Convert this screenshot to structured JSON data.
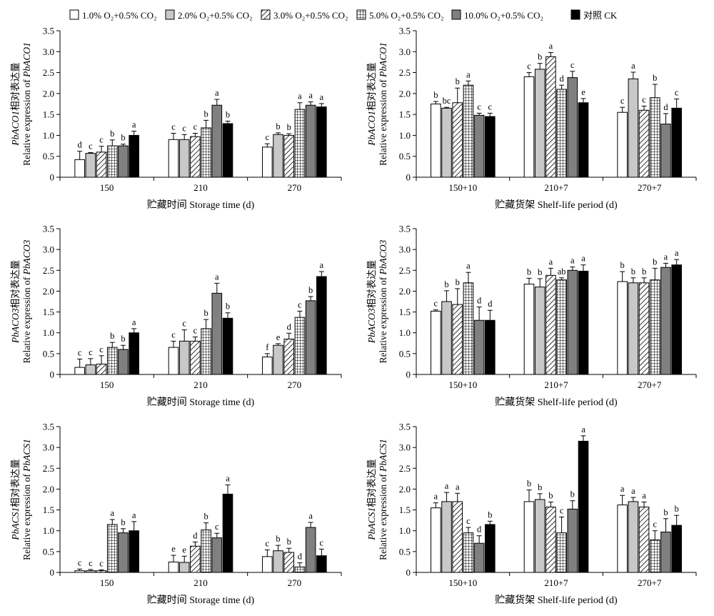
{
  "legend": {
    "items": [
      {
        "label": "1.0% O₂+0.5% CO₂",
        "pattern": "white"
      },
      {
        "label": "2.0% O₂+0.5% CO₂",
        "pattern": "lightgray"
      },
      {
        "label": "3.0% O₂+0.5% CO₂",
        "pattern": "diagonal"
      },
      {
        "label": "5.0% O₂+0.5% CO₂",
        "pattern": "grid"
      },
      {
        "label": "10.0% O₂+0.5% CO₂",
        "pattern": "darkgray"
      },
      {
        "label": "对照 CK",
        "pattern": "black"
      }
    ]
  },
  "colors": {
    "white": "#ffffff",
    "lightgray": "#c8c8c8",
    "darkgray": "#808080",
    "black": "#000000"
  },
  "chart_data": [
    {
      "type": "bar",
      "ylabel_cn_gene": "PbACO1",
      "ylabel_cn": "相对表达量",
      "ylabel_en": "Relative expression of ",
      "ylabel_gene": "PbACO1",
      "xlabel": "贮藏时间 Storage time (d)",
      "ylim": [
        0,
        3.5
      ],
      "yticks": [
        "0",
        "0.5",
        "1.0",
        "1.5",
        "2.0",
        "2.5",
        "3.0",
        "3.5"
      ],
      "categories": [
        "150",
        "210",
        "270"
      ],
      "series": [
        {
          "name": "1.0% O₂+0.5% CO₂",
          "values": [
            0.42,
            0.9,
            0.72
          ],
          "errors": [
            0.2,
            0.15,
            0.08
          ],
          "letters": [
            "d",
            "c",
            "c"
          ]
        },
        {
          "name": "2.0% O₂+0.5% CO₂",
          "values": [
            0.57,
            0.9,
            1.02
          ],
          "errors": [
            0.02,
            0.12,
            0.04
          ],
          "letters": [
            "c",
            "c",
            "b"
          ]
        },
        {
          "name": "3.0% O₂+0.5% CO₂",
          "values": [
            0.6,
            0.97,
            1.0
          ],
          "errors": [
            0.14,
            0.08,
            0.04
          ],
          "letters": [
            "c",
            "c",
            "b"
          ]
        },
        {
          "name": "5.0% O₂+0.5% CO₂",
          "values": [
            0.75,
            1.18,
            1.62
          ],
          "errors": [
            0.14,
            0.18,
            0.16
          ],
          "letters": [
            "b",
            "b",
            "a"
          ]
        },
        {
          "name": "10.0% O₂+0.5% CO₂",
          "values": [
            0.75,
            1.72,
            1.72
          ],
          "errors": [
            0.04,
            0.14,
            0.08
          ],
          "letters": [
            "b",
            "a",
            "a"
          ]
        },
        {
          "name": "对照 CK",
          "values": [
            1.0,
            1.28,
            1.68
          ],
          "errors": [
            0.1,
            0.06,
            0.08
          ],
          "letters": [
            "a",
            "b",
            "a"
          ]
        }
      ]
    },
    {
      "type": "bar",
      "ylabel_cn_gene": "PbACO1",
      "ylabel_cn": "相对表达量",
      "ylabel_en": "Relative expression of ",
      "ylabel_gene": "PbACO1",
      "xlabel": "贮藏货架 Shelf-life period (d)",
      "ylim": [
        0,
        3.5
      ],
      "yticks": [
        "0",
        "0.5",
        "1.0",
        "1.5",
        "2.0",
        "2.5",
        "3.0",
        "3.5"
      ],
      "categories": [
        "150+10",
        "210+7",
        "270+7"
      ],
      "series": [
        {
          "name": "1.0% O₂+0.5% CO₂",
          "values": [
            1.75,
            2.4,
            1.55
          ],
          "errors": [
            0.06,
            0.1,
            0.12
          ],
          "letters": [
            "b",
            "c",
            "c"
          ]
        },
        {
          "name": "2.0% O₂+0.5% CO₂",
          "values": [
            1.65,
            2.58,
            2.35
          ],
          "errors": [
            0.02,
            0.14,
            0.16
          ],
          "letters": [
            "bc",
            "b",
            "a"
          ]
        },
        {
          "name": "3.0% O₂+0.5% CO₂",
          "values": [
            1.78,
            2.88,
            1.6
          ],
          "errors": [
            0.35,
            0.1,
            0.1
          ],
          "letters": [
            "b",
            "a",
            "c"
          ]
        },
        {
          "name": "5.0% O₂+0.5% CO₂",
          "values": [
            2.2,
            2.1,
            1.9
          ],
          "errors": [
            0.1,
            0.1,
            0.32
          ],
          "letters": [
            "a",
            "d",
            "b"
          ]
        },
        {
          "name": "10.0% O₂+0.5% CO₂",
          "values": [
            1.48,
            2.38,
            1.27
          ],
          "errors": [
            0.05,
            0.15,
            0.25
          ],
          "letters": [
            "c",
            "c",
            "d"
          ]
        },
        {
          "name": "对照 CK",
          "values": [
            1.45,
            1.78,
            1.65
          ],
          "errors": [
            0.08,
            0.1,
            0.22
          ],
          "letters": [
            "c",
            "e",
            "c"
          ]
        }
      ]
    },
    {
      "type": "bar",
      "ylabel_cn_gene": "PbACO3",
      "ylabel_cn": "相对表达量",
      "ylabel_en": "Relative expression of ",
      "ylabel_gene": "PbACO3",
      "xlabel": "贮藏时间 Storage time (d)",
      "ylim": [
        0,
        3.5
      ],
      "yticks": [
        "0",
        "0.5",
        "1.0",
        "1.5",
        "2.0",
        "2.5",
        "3.0",
        "3.5"
      ],
      "categories": [
        "150",
        "210",
        "270"
      ],
      "series": [
        {
          "name": "1.0% O₂+0.5% CO₂",
          "values": [
            0.17,
            0.65,
            0.42
          ],
          "errors": [
            0.2,
            0.15,
            0.08
          ],
          "letters": [
            "c",
            "c",
            "f"
          ]
        },
        {
          "name": "2.0% O₂+0.5% CO₂",
          "values": [
            0.23,
            0.8,
            0.7
          ],
          "errors": [
            0.15,
            0.27,
            0.04
          ],
          "letters": [
            "c",
            "c",
            "e"
          ]
        },
        {
          "name": "3.0% O₂+0.5% CO₂",
          "values": [
            0.25,
            0.8,
            0.85
          ],
          "errors": [
            0.2,
            0.1,
            0.14
          ],
          "letters": [
            "c",
            "c",
            "d"
          ]
        },
        {
          "name": "5.0% O₂+0.5% CO₂",
          "values": [
            0.65,
            1.1,
            1.37
          ],
          "errors": [
            0.12,
            0.22,
            0.15
          ],
          "letters": [
            "b",
            "b",
            "c"
          ]
        },
        {
          "name": "10.0% O₂+0.5% CO₂",
          "values": [
            0.6,
            1.95,
            1.77
          ],
          "errors": [
            0.1,
            0.24,
            0.1
          ],
          "letters": [
            "b",
            "a",
            "b"
          ]
        },
        {
          "name": "对照 CK",
          "values": [
            1.0,
            1.35,
            2.35
          ],
          "errors": [
            0.1,
            0.13,
            0.12
          ],
          "letters": [
            "a",
            "b",
            "a"
          ]
        }
      ]
    },
    {
      "type": "bar",
      "ylabel_cn_gene": "PbACO3",
      "ylabel_cn": "相对表达量",
      "ylabel_en": "Relative expression of ",
      "ylabel_gene": "PbACO3",
      "xlabel": "贮藏货架 Shelf-life period (d)",
      "ylim": [
        0,
        3.5
      ],
      "yticks": [
        "0",
        "0.5",
        "1.0",
        "1.5",
        "2.0",
        "2.5",
        "3.0",
        "3.5"
      ],
      "categories": [
        "150+10",
        "210+7",
        "270+7"
      ],
      "series": [
        {
          "name": "1.0% O₂+0.5% CO₂",
          "values": [
            1.52,
            2.17,
            2.23
          ],
          "errors": [
            0.03,
            0.14,
            0.24
          ],
          "letters": [
            "c",
            "b",
            "b"
          ]
        },
        {
          "name": "2.0% O₂+0.5% CO₂",
          "values": [
            1.75,
            2.1,
            2.2
          ],
          "errors": [
            0.26,
            0.2,
            0.12
          ],
          "letters": [
            "b",
            "b",
            "b"
          ]
        },
        {
          "name": "3.0% O₂+0.5% CO₂",
          "values": [
            1.68,
            2.38,
            2.2
          ],
          "errors": [
            0.38,
            0.17,
            0.12
          ],
          "letters": [
            "b",
            "a",
            "b"
          ]
        },
        {
          "name": "5.0% O₂+0.5% CO₂",
          "values": [
            2.2,
            2.27,
            2.27
          ],
          "errors": [
            0.25,
            0.05,
            0.28
          ],
          "letters": [
            "a",
            "ab",
            "b"
          ]
        },
        {
          "name": "10.0% O₂+0.5% CO₂",
          "values": [
            1.3,
            2.5,
            2.57
          ],
          "errors": [
            0.32,
            0.08,
            0.1
          ],
          "letters": [
            "d",
            "a",
            "a"
          ]
        },
        {
          "name": "对照 CK",
          "values": [
            1.3,
            2.48,
            2.63
          ],
          "errors": [
            0.24,
            0.15,
            0.13
          ],
          "letters": [
            "d",
            "a",
            "a"
          ]
        }
      ]
    },
    {
      "type": "bar",
      "ylabel_cn_gene": "PbACS1",
      "ylabel_cn": "相对表达量",
      "ylabel_en": "Relative expression of ",
      "ylabel_gene": "PbACS1",
      "xlabel": "贮藏时间 Storage time (d)",
      "ylim": [
        0,
        3.5
      ],
      "yticks": [
        "0",
        "0.5",
        "1.0",
        "1.5",
        "2.0",
        "2.5",
        "3.0",
        "3.5"
      ],
      "categories": [
        "150",
        "210",
        "270"
      ],
      "series": [
        {
          "name": "1.0% O₂+0.5% CO₂",
          "values": [
            0.04,
            0.25,
            0.38
          ],
          "errors": [
            0.04,
            0.16,
            0.16
          ],
          "letters": [
            "c",
            "e",
            "c"
          ]
        },
        {
          "name": "2.0% O₂+0.5% CO₂",
          "values": [
            0.04,
            0.24,
            0.52
          ],
          "errors": [
            0.03,
            0.15,
            0.13
          ],
          "letters": [
            "c",
            "e",
            "b"
          ]
        },
        {
          "name": "3.0% O₂+0.5% CO₂",
          "values": [
            0.04,
            0.63,
            0.48
          ],
          "errors": [
            0.02,
            0.1,
            0.1
          ],
          "letters": [
            "c",
            "d",
            "b"
          ]
        },
        {
          "name": "5.0% O₂+0.5% CO₂",
          "values": [
            1.15,
            1.02,
            0.13
          ],
          "errors": [
            0.12,
            0.17,
            0.1
          ],
          "letters": [
            "a",
            "b",
            "d"
          ]
        },
        {
          "name": "10.0% O₂+0.5% CO₂",
          "values": [
            0.95,
            0.83,
            1.08
          ],
          "errors": [
            0.1,
            0.11,
            0.12
          ],
          "letters": [
            "b",
            "c",
            "a"
          ]
        },
        {
          "name": "对照 CK",
          "values": [
            1.0,
            1.88,
            0.4
          ],
          "errors": [
            0.22,
            0.22,
            0.16
          ],
          "letters": [
            "a",
            "a",
            "c"
          ]
        }
      ]
    },
    {
      "type": "bar",
      "ylabel_cn_gene": "PbACS1",
      "ylabel_cn": "相对表达量",
      "ylabel_en": "Relative expression of ",
      "ylabel_gene": "PbACS1",
      "xlabel": "贮藏货架 Shelf-life period (d)",
      "ylim": [
        0,
        3.5
      ],
      "yticks": [
        "0",
        "0.5",
        "1.0",
        "1.5",
        "2.0",
        "2.5",
        "3.0",
        "3.5"
      ],
      "categories": [
        "150+10",
        "210+7",
        "270+7"
      ],
      "series": [
        {
          "name": "1.0% O₂+0.5% CO₂",
          "values": [
            1.55,
            1.7,
            1.62
          ],
          "errors": [
            0.12,
            0.28,
            0.23
          ],
          "letters": [
            "a",
            "b",
            "a"
          ]
        },
        {
          "name": "2.0% O₂+0.5% CO₂",
          "values": [
            1.7,
            1.75,
            1.7
          ],
          "errors": [
            0.22,
            0.14,
            0.1
          ],
          "letters": [
            "a",
            "b",
            "a"
          ]
        },
        {
          "name": "3.0% O₂+0.5% CO₂",
          "values": [
            1.7,
            1.57,
            1.57
          ],
          "errors": [
            0.2,
            0.12,
            0.12
          ],
          "letters": [
            "a",
            "b",
            "a"
          ]
        },
        {
          "name": "5.0% O₂+0.5% CO₂",
          "values": [
            0.95,
            0.95,
            0.78
          ],
          "errors": [
            0.13,
            0.38,
            0.22
          ],
          "letters": [
            "c",
            "c",
            "c"
          ]
        },
        {
          "name": "10.0% O₂+0.5% CO₂",
          "values": [
            0.7,
            1.52,
            0.97
          ],
          "errors": [
            0.18,
            0.2,
            0.32
          ],
          "letters": [
            "d",
            "b",
            "b"
          ]
        },
        {
          "name": "对照 CK",
          "values": [
            1.15,
            3.15,
            1.13
          ],
          "errors": [
            0.08,
            0.13,
            0.24
          ],
          "letters": [
            "b",
            "a",
            "b"
          ]
        }
      ]
    }
  ]
}
